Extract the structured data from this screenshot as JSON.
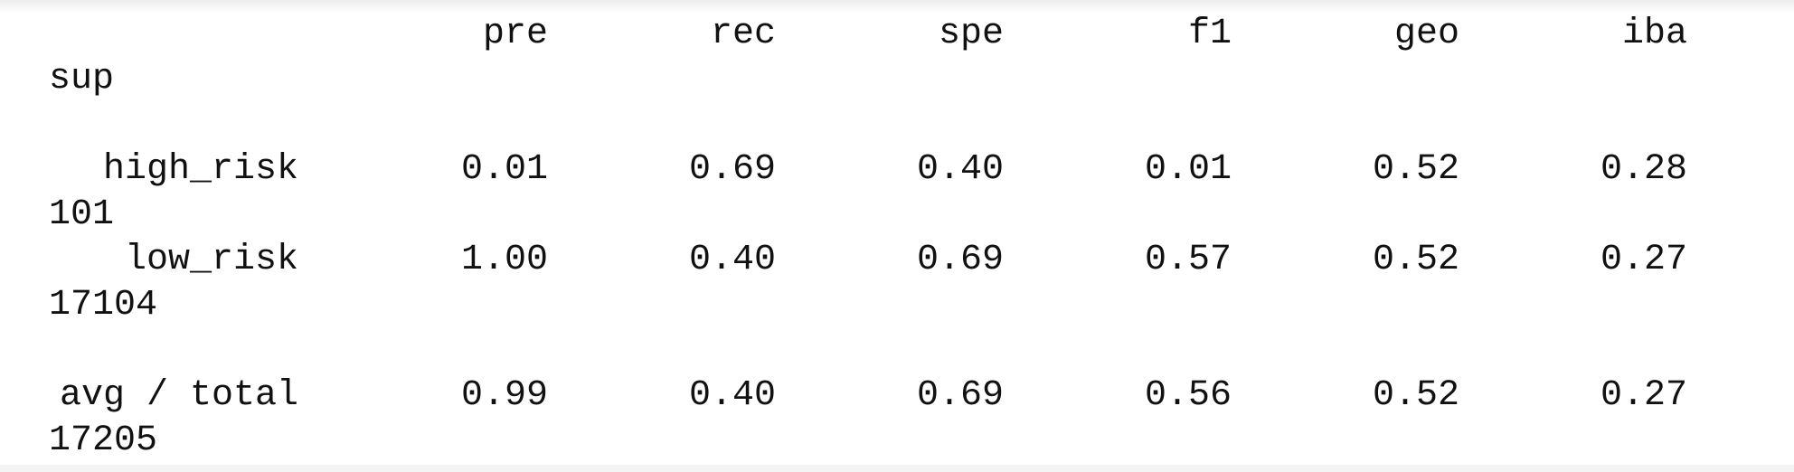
{
  "report": {
    "headers": [
      "pre",
      "rec",
      "spe",
      "f1",
      "geo",
      "iba"
    ],
    "support_header": "sup",
    "rows": [
      {
        "label": "high_risk",
        "values": [
          "0.01",
          "0.69",
          "0.40",
          "0.01",
          "0.52",
          "0.28"
        ],
        "support": "101"
      },
      {
        "label": "low_risk",
        "values": [
          "1.00",
          "0.40",
          "0.69",
          "0.57",
          "0.52",
          "0.27"
        ],
        "support": "17104"
      }
    ],
    "total": {
      "label": "avg / total",
      "values": [
        "0.99",
        "0.40",
        "0.69",
        "0.56",
        "0.52",
        "0.27"
      ],
      "support": "17205"
    }
  }
}
